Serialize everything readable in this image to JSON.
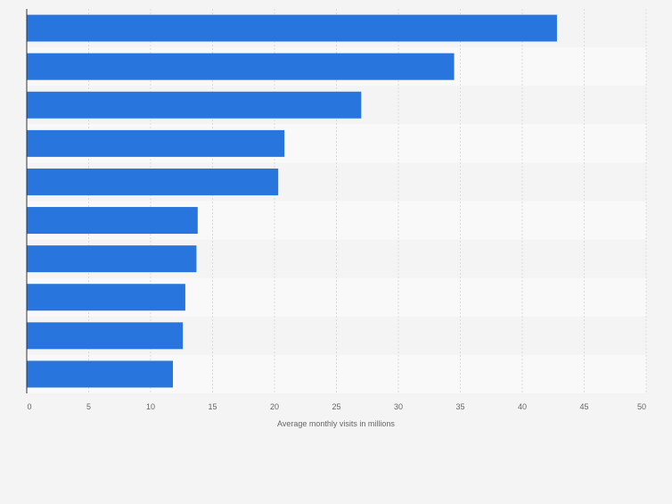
{
  "chart_data": {
    "type": "bar",
    "orientation": "horizontal",
    "title": "",
    "categories": [
      "",
      "",
      "",
      "",
      "",
      "",
      "",
      "",
      "",
      ""
    ],
    "values": [
      42.8,
      34.5,
      27.0,
      20.8,
      20.3,
      13.8,
      13.7,
      12.8,
      12.6,
      11.8
    ],
    "xlabel": "Average monthly visits in millions",
    "ylabel": "",
    "xlim": [
      0,
      50
    ],
    "xticks": [
      "0",
      "5",
      "10",
      "15",
      "20",
      "25",
      "30",
      "35",
      "40",
      "45",
      "50"
    ],
    "grid": true,
    "bar_color": "#2876dd"
  }
}
